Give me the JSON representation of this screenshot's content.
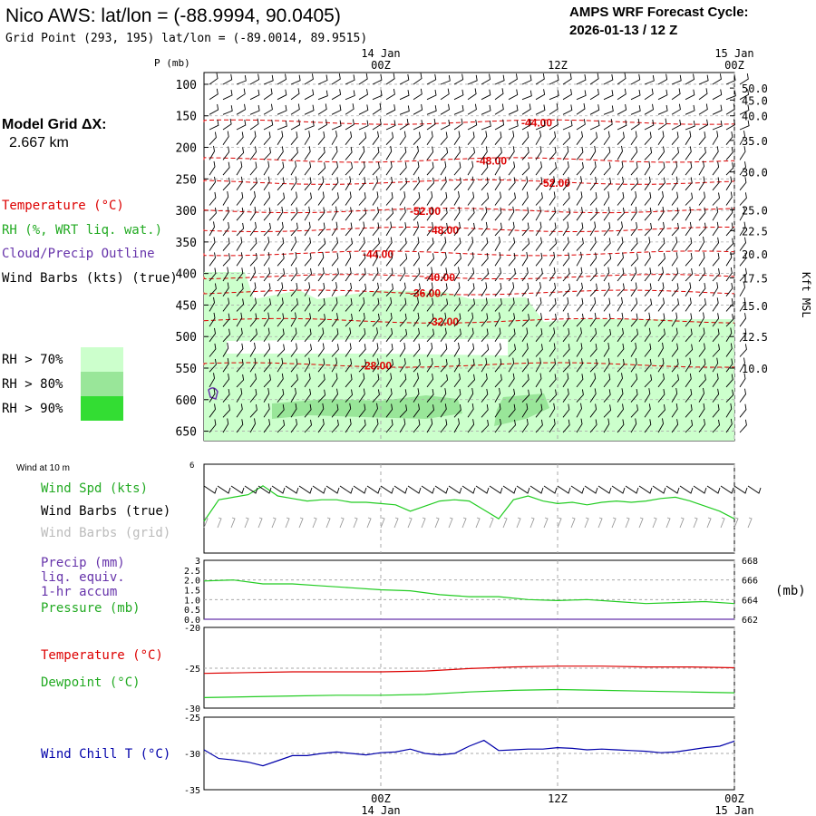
{
  "header": {
    "title": "Nico AWS:  lat/lon = (-88.9994, 90.0405)",
    "subtitle": "Grid Point (293, 195) lat/lon = (-89.0014, 89.9515)",
    "cycle_label": "AMPS WRF Forecast Cycle:",
    "cycle_value": "2026-01-13 / 12  Z"
  },
  "model_grid": {
    "label": "Model Grid ΔX:",
    "value": "2.667 km"
  },
  "legend_top": {
    "temperature": "Temperature (°C)",
    "rh": "RH (%, WRT liq. wat.)",
    "cloud": "Cloud/Precip Outline",
    "wind": "Wind Barbs (kts) (true)",
    "rh70": "RH > 70%",
    "rh80": "RH > 80%",
    "rh90": "RH > 90%"
  },
  "colors": {
    "temperature": "#dd0000",
    "rh70": "#ccffcc",
    "rh80": "#99e699",
    "rh90": "#33dd33",
    "dewpoint": "#22cc22",
    "windchill": "#0000aa",
    "cloud": "#6633aa",
    "grid": "#aaaaaa"
  },
  "time_axis": {
    "ticks": [
      {
        "hour": 12,
        "label": "00Z",
        "date": "14 Jan"
      },
      {
        "hour": 24,
        "label": "12Z",
        "date": ""
      },
      {
        "hour": 36,
        "label": "00Z",
        "date": "15 Jan"
      }
    ],
    "range_hours": [
      0,
      36
    ]
  },
  "chart_data": [
    {
      "type": "heatmap",
      "name": "cross-section",
      "ylabel": "P (mb)",
      "ylabel_right": "Kft MSL",
      "pressure_ticks": [
        100,
        150,
        200,
        250,
        300,
        350,
        400,
        450,
        500,
        550,
        600,
        650
      ],
      "height_ticks": [
        {
          "p": 106,
          "kft": "50.0"
        },
        {
          "p": 125,
          "kft": "45.0"
        },
        {
          "p": 150,
          "kft": "40.0"
        },
        {
          "p": 189,
          "kft": "35.0"
        },
        {
          "p": 239,
          "kft": "30.0"
        },
        {
          "p": 299,
          "kft": "25.0"
        },
        {
          "p": 332,
          "kft": "22.5"
        },
        {
          "p": 369,
          "kft": "20.0"
        },
        {
          "p": 407,
          "kft": "17.5"
        },
        {
          "p": 451,
          "kft": "15.0"
        },
        {
          "p": 500,
          "kft": "12.5"
        },
        {
          "p": 550,
          "kft": "10.0"
        }
      ],
      "temperature_contours": [
        {
          "p": 160,
          "label": "-44.00"
        },
        {
          "p": 220,
          "label": "-48.00"
        },
        {
          "p": 255,
          "label": "-52.00"
        },
        {
          "p": 300,
          "label": "-52.00"
        },
        {
          "p": 330,
          "label": "-48.00"
        },
        {
          "p": 368,
          "label": "-44.00"
        },
        {
          "p": 405,
          "label": "-40.00"
        },
        {
          "p": 430,
          "label": "-36.00"
        },
        {
          "p": 475,
          "label": "-32.00"
        },
        {
          "p": 545,
          "label": "-28.00"
        }
      ]
    },
    {
      "type": "line",
      "name": "wind-10m",
      "title": "Wind at 10 m",
      "series_label": "Wind Spd (kts)",
      "barbs_true_label": "Wind Barbs (true)",
      "barbs_grid_label": "Wind Barbs (grid)",
      "y_ticks": [
        "6"
      ],
      "x": [
        0,
        1,
        2,
        3,
        4,
        5,
        6,
        7,
        8,
        9,
        10,
        11,
        12,
        13,
        14,
        15,
        16,
        17,
        18,
        19,
        20,
        21,
        22,
        23,
        24,
        25,
        26,
        27,
        28,
        29,
        30,
        31,
        32,
        33,
        34,
        35,
        36
      ],
      "values": [
        2.5,
        4.2,
        4.4,
        4.6,
        5.3,
        4.5,
        4.3,
        4.1,
        4.2,
        4.2,
        4.0,
        4.0,
        3.9,
        3.8,
        3.3,
        3.7,
        4.1,
        4.2,
        4.1,
        3.4,
        2.7,
        4.2,
        4.5,
        4.1,
        3.9,
        4.0,
        3.8,
        4.0,
        4.1,
        4.0,
        4.1,
        4.3,
        4.4,
        4.1,
        3.7,
        3.3,
        2.7
      ],
      "ylim": [
        0,
        7
      ]
    },
    {
      "type": "line",
      "name": "precip-pressure",
      "precip_label": "Precip (mm)",
      "precip_sub1": "liq. equiv.",
      "precip_sub2": "1-hr accum",
      "pressure_label": "Pressure (mb)",
      "right_unit": "(mb)",
      "left_ticks": [
        "0.0",
        "0.5",
        "1.0",
        "1.5",
        "2.0",
        "2.5",
        "3"
      ],
      "right_ticks": [
        "662",
        "664",
        "666",
        "668"
      ],
      "x": [
        0,
        2,
        4,
        6,
        8,
        10,
        12,
        14,
        16,
        18,
        20,
        22,
        24,
        26,
        28,
        30,
        32,
        34,
        36
      ],
      "pressure": [
        665.9,
        666.0,
        665.6,
        665.6,
        665.4,
        665.2,
        665.0,
        664.9,
        664.5,
        664.3,
        664.3,
        664.0,
        663.9,
        664.0,
        663.8,
        663.6,
        663.7,
        663.8,
        663.6
      ],
      "precip": [
        0,
        0,
        0,
        0,
        0,
        0,
        0,
        0,
        0,
        0,
        0,
        0,
        0,
        0,
        0,
        0,
        0,
        0,
        0
      ],
      "ylim_pressure": [
        662,
        668
      ],
      "ylim_precip": [
        0,
        3
      ]
    },
    {
      "type": "line",
      "name": "temp-dewpoint",
      "temp_label": "Temperature (°C)",
      "dew_label": "Dewpoint (°C)",
      "y_ticks": [
        "-20",
        "-25",
        "-30"
      ],
      "x": [
        0,
        3,
        6,
        9,
        12,
        15,
        18,
        21,
        24,
        27,
        30,
        33,
        36
      ],
      "temperature": [
        -25.7,
        -25.6,
        -25.5,
        -25.5,
        -25.5,
        -25.4,
        -25.1,
        -24.9,
        -24.8,
        -24.8,
        -24.9,
        -24.9,
        -25.0
      ],
      "dewpoint": [
        -28.7,
        -28.6,
        -28.5,
        -28.4,
        -28.4,
        -28.3,
        -28.0,
        -27.8,
        -27.7,
        -27.8,
        -27.9,
        -28.0,
        -28.1
      ],
      "ylim": [
        -30,
        -20
      ]
    },
    {
      "type": "line",
      "name": "wind-chill",
      "label": "Wind Chill T (°C)",
      "y_ticks": [
        "-25",
        "-30",
        "-35"
      ],
      "x": [
        0,
        1,
        2,
        3,
        4,
        5,
        6,
        7,
        8,
        9,
        10,
        11,
        12,
        13,
        14,
        15,
        16,
        17,
        18,
        19,
        20,
        21,
        22,
        23,
        24,
        25,
        26,
        27,
        28,
        29,
        30,
        31,
        32,
        33,
        34,
        35,
        36
      ],
      "values": [
        -29.5,
        -30.7,
        -30.9,
        -31.2,
        -31.7,
        -31.0,
        -30.3,
        -30.3,
        -30.0,
        -29.8,
        -30.0,
        -30.2,
        -29.9,
        -29.8,
        -29.4,
        -30.0,
        -30.2,
        -30.0,
        -29.0,
        -28.2,
        -29.6,
        -29.5,
        -29.4,
        -29.4,
        -29.2,
        -29.3,
        -29.5,
        -29.4,
        -29.5,
        -29.6,
        -29.7,
        -29.9,
        -29.8,
        -29.5,
        -29.2,
        -29.0,
        -28.3
      ],
      "ylim": [
        -35,
        -25
      ]
    }
  ]
}
